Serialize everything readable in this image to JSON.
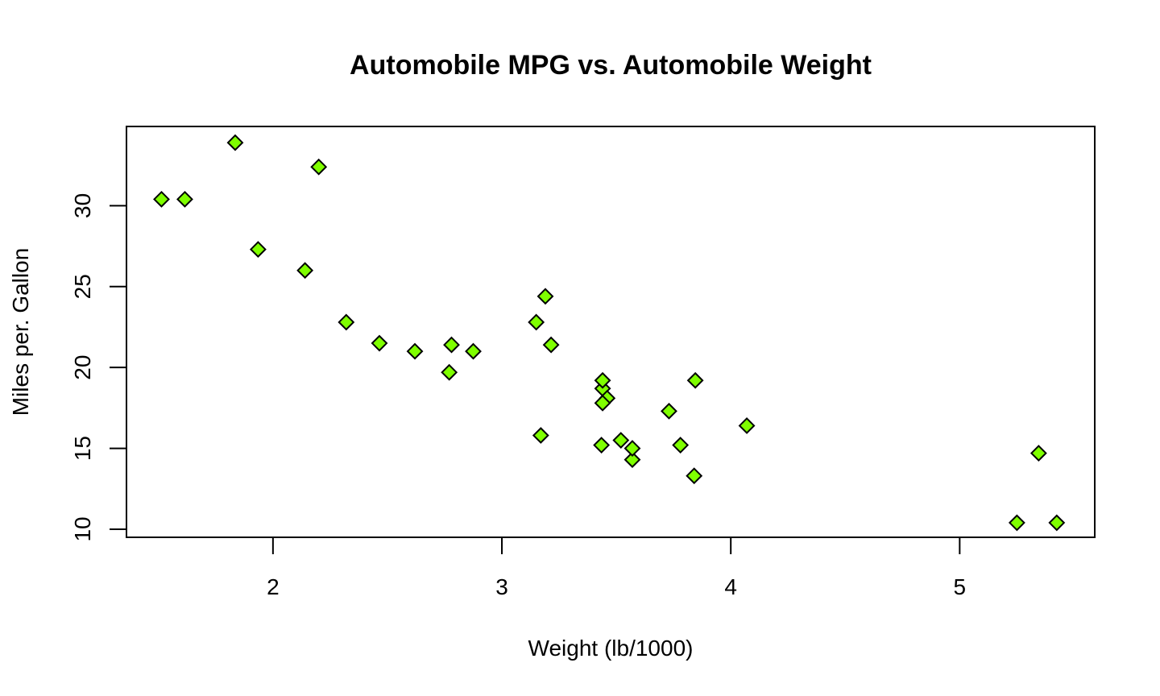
{
  "chart_data": {
    "type": "scatter",
    "title": "Automobile MPG vs. Automobile Weight",
    "xlabel": "Weight (lb/1000)",
    "ylabel": "Miles per. Gallon",
    "xlim": [
      1.36,
      5.59
    ],
    "ylim": [
      9.5,
      34.9
    ],
    "xticks": [
      2,
      3,
      4,
      5
    ],
    "yticks": [
      10,
      15,
      20,
      25,
      30
    ],
    "marker": "diamond",
    "marker_fill": "#7FFF00",
    "marker_stroke": "#000000",
    "grid": false,
    "legend": "none",
    "points": [
      {
        "x": 2.62,
        "y": 21.0
      },
      {
        "x": 2.875,
        "y": 21.0
      },
      {
        "x": 2.32,
        "y": 22.8
      },
      {
        "x": 3.215,
        "y": 21.4
      },
      {
        "x": 3.44,
        "y": 18.7
      },
      {
        "x": 3.46,
        "y": 18.1
      },
      {
        "x": 3.57,
        "y": 14.3
      },
      {
        "x": 3.19,
        "y": 24.4
      },
      {
        "x": 3.15,
        "y": 22.8
      },
      {
        "x": 3.44,
        "y": 19.2
      },
      {
        "x": 3.44,
        "y": 17.8
      },
      {
        "x": 4.07,
        "y": 16.4
      },
      {
        "x": 3.73,
        "y": 17.3
      },
      {
        "x": 3.78,
        "y": 15.2
      },
      {
        "x": 5.25,
        "y": 10.4
      },
      {
        "x": 5.424,
        "y": 10.4
      },
      {
        "x": 5.345,
        "y": 14.7
      },
      {
        "x": 2.2,
        "y": 32.4
      },
      {
        "x": 1.615,
        "y": 30.4
      },
      {
        "x": 1.835,
        "y": 33.9
      },
      {
        "x": 2.465,
        "y": 21.5
      },
      {
        "x": 3.52,
        "y": 15.5
      },
      {
        "x": 3.435,
        "y": 15.2
      },
      {
        "x": 3.84,
        "y": 13.3
      },
      {
        "x": 3.845,
        "y": 19.2
      },
      {
        "x": 1.935,
        "y": 27.3
      },
      {
        "x": 2.14,
        "y": 26.0
      },
      {
        "x": 1.513,
        "y": 30.4
      },
      {
        "x": 3.17,
        "y": 15.8
      },
      {
        "x": 2.77,
        "y": 19.7
      },
      {
        "x": 3.57,
        "y": 15.0
      },
      {
        "x": 2.78,
        "y": 21.4
      }
    ]
  }
}
